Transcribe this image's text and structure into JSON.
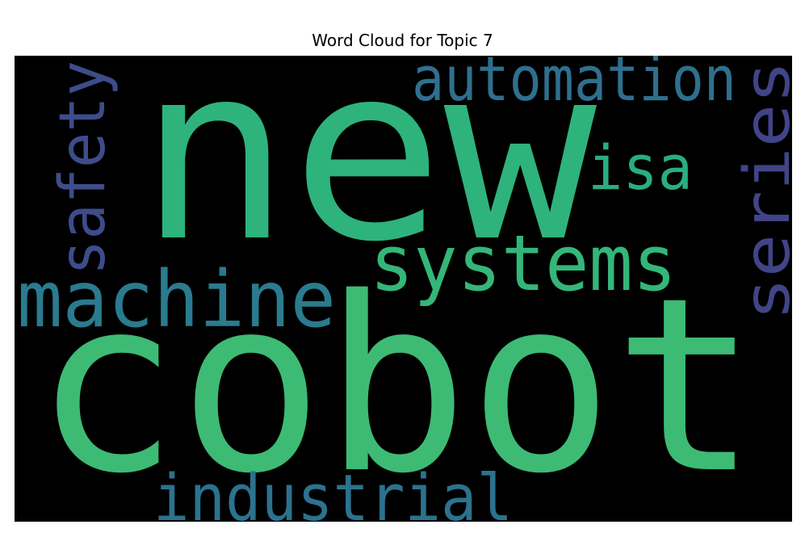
{
  "title": "Word Cloud for Topic 7",
  "chart_data": {
    "type": "wordcloud",
    "title": "Word Cloud for Topic 7",
    "background": "#000000",
    "words": [
      {
        "text": "cobot",
        "color": "#3dbb74",
        "orientation": "horizontal"
      },
      {
        "text": "new",
        "color": "#2eb37c",
        "orientation": "horizontal"
      },
      {
        "text": "machine",
        "color": "#2a7b8e",
        "orientation": "horizontal"
      },
      {
        "text": "systems",
        "color": "#34b679",
        "orientation": "horizontal"
      },
      {
        "text": "automation",
        "color": "#2f6f8e",
        "orientation": "horizontal"
      },
      {
        "text": "industrial",
        "color": "#2c728e",
        "orientation": "horizontal"
      },
      {
        "text": "series",
        "color": "#414487",
        "orientation": "vertical"
      },
      {
        "text": "safety",
        "color": "#3e4c8a",
        "orientation": "vertical"
      },
      {
        "text": "isa",
        "color": "#28ae80",
        "orientation": "horizontal"
      }
    ]
  }
}
